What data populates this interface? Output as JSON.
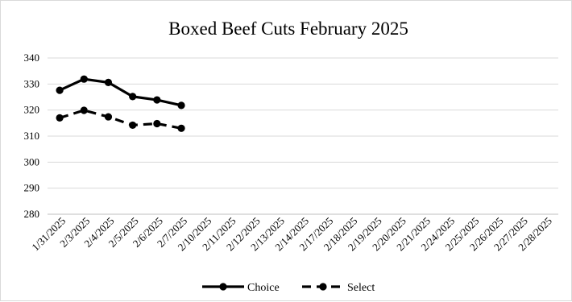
{
  "chart_data": {
    "type": "line",
    "title": "Boxed Beef Cuts February  2025",
    "categories": [
      "1/31/2025",
      "2/3/2025",
      "2/4/2025",
      "2/5/2025",
      "2/6/2025",
      "2/7/2025",
      "2/10/2025",
      "2/11/2025",
      "2/12/2025",
      "2/13/2025",
      "2/14/2025",
      "2/17/2025",
      "2/18/2025",
      "2/19/2025",
      "2/20/2025",
      "2/21/2025",
      "2/24/2025",
      "2/25/2025",
      "2/26/2025",
      "2/27/2025",
      "2/28/2025"
    ],
    "ylim": [
      280,
      340
    ],
    "yticks": [
      "280",
      "290",
      "300",
      "310",
      "320",
      "330",
      "340"
    ],
    "grid": true,
    "legend_position": "bottom",
    "series": [
      {
        "name": "Choice",
        "style": "solid",
        "color": "#000000",
        "values": [
          327.6,
          331.9,
          330.6,
          325.2,
          323.9,
          321.8,
          null,
          null,
          null,
          null,
          null,
          null,
          null,
          null,
          null,
          null,
          null,
          null,
          null,
          null,
          null
        ]
      },
      {
        "name": "Select",
        "style": "dashed",
        "color": "#000000",
        "values": [
          317.0,
          319.9,
          317.4,
          314.2,
          314.8,
          313.0,
          null,
          null,
          null,
          null,
          null,
          null,
          null,
          null,
          null,
          null,
          null,
          null,
          null,
          null,
          null
        ]
      }
    ]
  }
}
